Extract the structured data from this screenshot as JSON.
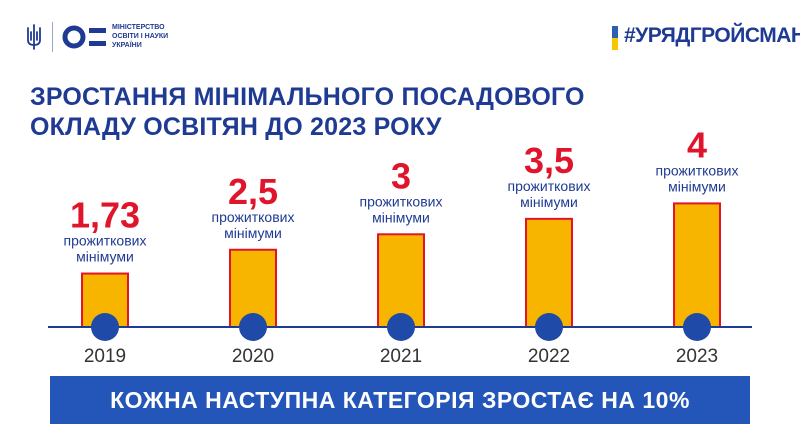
{
  "header": {
    "ministry_lines": [
      "МІНІСТЕРСТВО",
      "ОСВІТИ І НАУКИ",
      "УКРАЇНИ"
    ],
    "hashtag": "#УРЯДГРОЙСМАНА"
  },
  "title": {
    "line1": "ЗРОСТАННЯ МІНІМАЛЬНОГО ПОСАДОВОГО",
    "line2": "ОКЛАДУ ОСВІТЯН ДО 2023 РОКУ"
  },
  "banner": "КОЖНА НАСТУПНА КАТЕГОРІЯ ЗРОСТАЄ НА 10%",
  "colors": {
    "brand_blue": "#1f3a93",
    "bar_fill": "#f7b500",
    "bar_border": "#e0142a",
    "value_red": "#e0142a",
    "banner_blue": "#2356b8"
  },
  "chart_data": {
    "type": "bar",
    "categories": [
      "2019",
      "2020",
      "2021",
      "2022",
      "2023"
    ],
    "values": [
      1.73,
      2.5,
      3,
      3.5,
      4
    ],
    "value_labels": [
      "1,73",
      "2,5",
      "3",
      "3,5",
      "4"
    ],
    "unit_line1": "прожиткових",
    "unit_line2": "мінімуми",
    "title": "ЗРОСТАННЯ МІНІМАЛЬНОГО ПОСАДОВОГО ОКЛАДУ ОСВІТЯН ДО 2023 РОКУ",
    "xlabel": "",
    "ylabel": "",
    "grid": false
  }
}
